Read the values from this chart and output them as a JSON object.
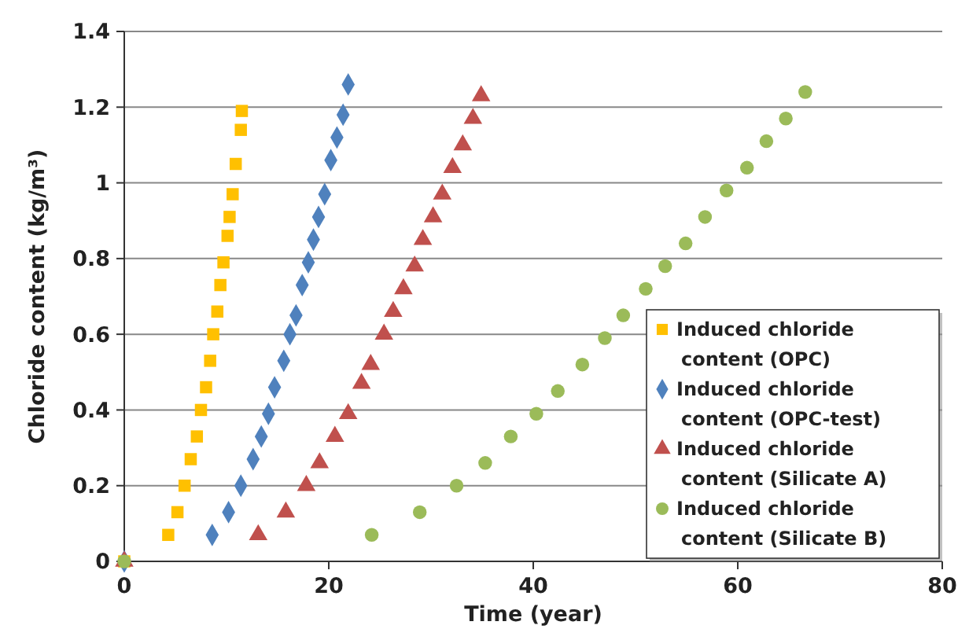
{
  "chart_data": {
    "type": "scatter",
    "xlabel": "Time (year)",
    "ylabel": "Chloride content (kg/m³)",
    "xlim": [
      0,
      80
    ],
    "xticks": [
      0,
      20,
      40,
      60,
      80
    ],
    "ylim": [
      0,
      1.4
    ],
    "yticks": [
      0,
      0.2,
      0.4,
      0.6,
      0.8,
      1,
      1.2,
      1.4
    ],
    "grid": "y",
    "legend": "bottom right",
    "series": [
      {
        "name": "Induced chloride content (OPC)",
        "color": "#ffc000",
        "marker": "square",
        "x": [
          0,
          4.3,
          5.2,
          5.9,
          6.5,
          7.1,
          7.5,
          8.0,
          8.4,
          8.7,
          9.1,
          9.4,
          9.7,
          10.1,
          10.3,
          10.6,
          10.9,
          11.4,
          11.5
        ],
        "values": [
          0,
          0.07,
          0.13,
          0.2,
          0.27,
          0.33,
          0.4,
          0.46,
          0.53,
          0.6,
          0.66,
          0.73,
          0.79,
          0.86,
          0.91,
          0.97,
          1.05,
          1.14,
          1.19
        ]
      },
      {
        "name": "Induced chloride content (OPC-test)",
        "color": "#4f81bd",
        "marker": "diamond",
        "x": [
          0,
          8.6,
          10.2,
          11.4,
          12.6,
          13.4,
          14.1,
          14.7,
          15.6,
          16.2,
          16.8,
          17.4,
          18.0,
          18.5,
          19.0,
          19.6,
          20.2,
          20.8,
          21.4,
          21.9
        ],
        "values": [
          0,
          0.07,
          0.13,
          0.2,
          0.27,
          0.33,
          0.39,
          0.46,
          0.53,
          0.6,
          0.65,
          0.73,
          0.79,
          0.85,
          0.91,
          0.97,
          1.06,
          1.12,
          1.18,
          1.26
        ]
      },
      {
        "name": "Induced chloride content (Silicate A)",
        "color": "#c0504d",
        "marker": "triangle",
        "x": [
          0,
          13.1,
          15.8,
          17.8,
          19.1,
          20.6,
          21.9,
          23.2,
          24.1,
          25.4,
          26.3,
          27.3,
          28.4,
          29.2,
          30.2,
          31.1,
          32.1,
          33.1,
          34.1,
          34.9
        ],
        "values": [
          0,
          0.07,
          0.13,
          0.2,
          0.26,
          0.33,
          0.39,
          0.47,
          0.52,
          0.6,
          0.66,
          0.72,
          0.78,
          0.85,
          0.91,
          0.97,
          1.04,
          1.1,
          1.17,
          1.23
        ]
      },
      {
        "name": "Induced chloride content (Silicate B)",
        "color": "#9bbb59",
        "marker": "circle",
        "x": [
          0,
          24.2,
          28.9,
          32.5,
          35.3,
          37.8,
          40.3,
          42.4,
          44.8,
          47.0,
          48.8,
          51.0,
          52.9,
          54.9,
          56.8,
          58.9,
          60.9,
          62.8,
          64.7,
          66.6
        ],
        "values": [
          0,
          0.07,
          0.13,
          0.2,
          0.26,
          0.33,
          0.39,
          0.45,
          0.52,
          0.59,
          0.65,
          0.72,
          0.78,
          0.84,
          0.91,
          0.98,
          1.04,
          1.11,
          1.17,
          1.24
        ]
      }
    ]
  }
}
